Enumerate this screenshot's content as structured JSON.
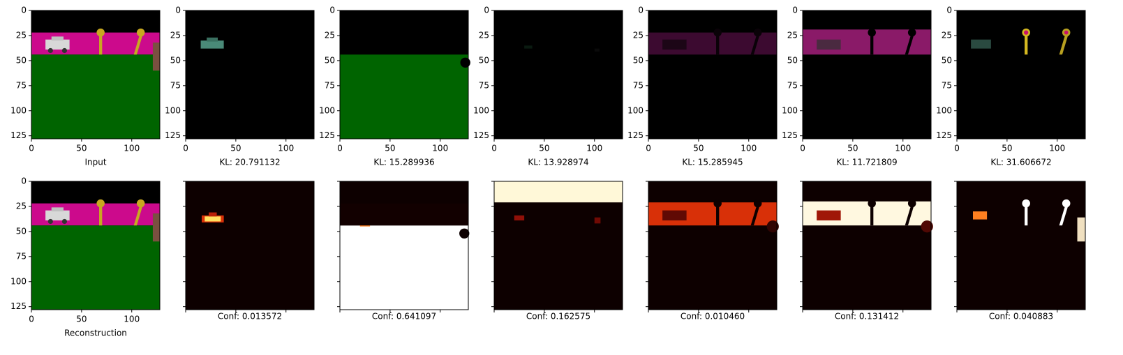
{
  "axes": {
    "xlim": [
      0,
      128
    ],
    "ylim": [
      128,
      0
    ],
    "xticks": [
      0,
      50,
      100
    ],
    "yticks": [
      0,
      25,
      50,
      75,
      100,
      125
    ]
  },
  "top_row": {
    "captions": [
      "Input",
      "KL: 20.791132",
      "KL: 15.289936",
      "KL: 13.928974",
      "KL: 15.285945",
      "KL: 11.721809",
      "KL: 31.606672"
    ]
  },
  "bottom_row": {
    "captions": [
      "Reconstruction",
      "Conf: 0.013572",
      "Conf: 0.641097",
      "Conf: 0.162575",
      "Conf: 0.010460",
      "Conf: 0.131412",
      "Conf: 0.040883"
    ]
  }
}
